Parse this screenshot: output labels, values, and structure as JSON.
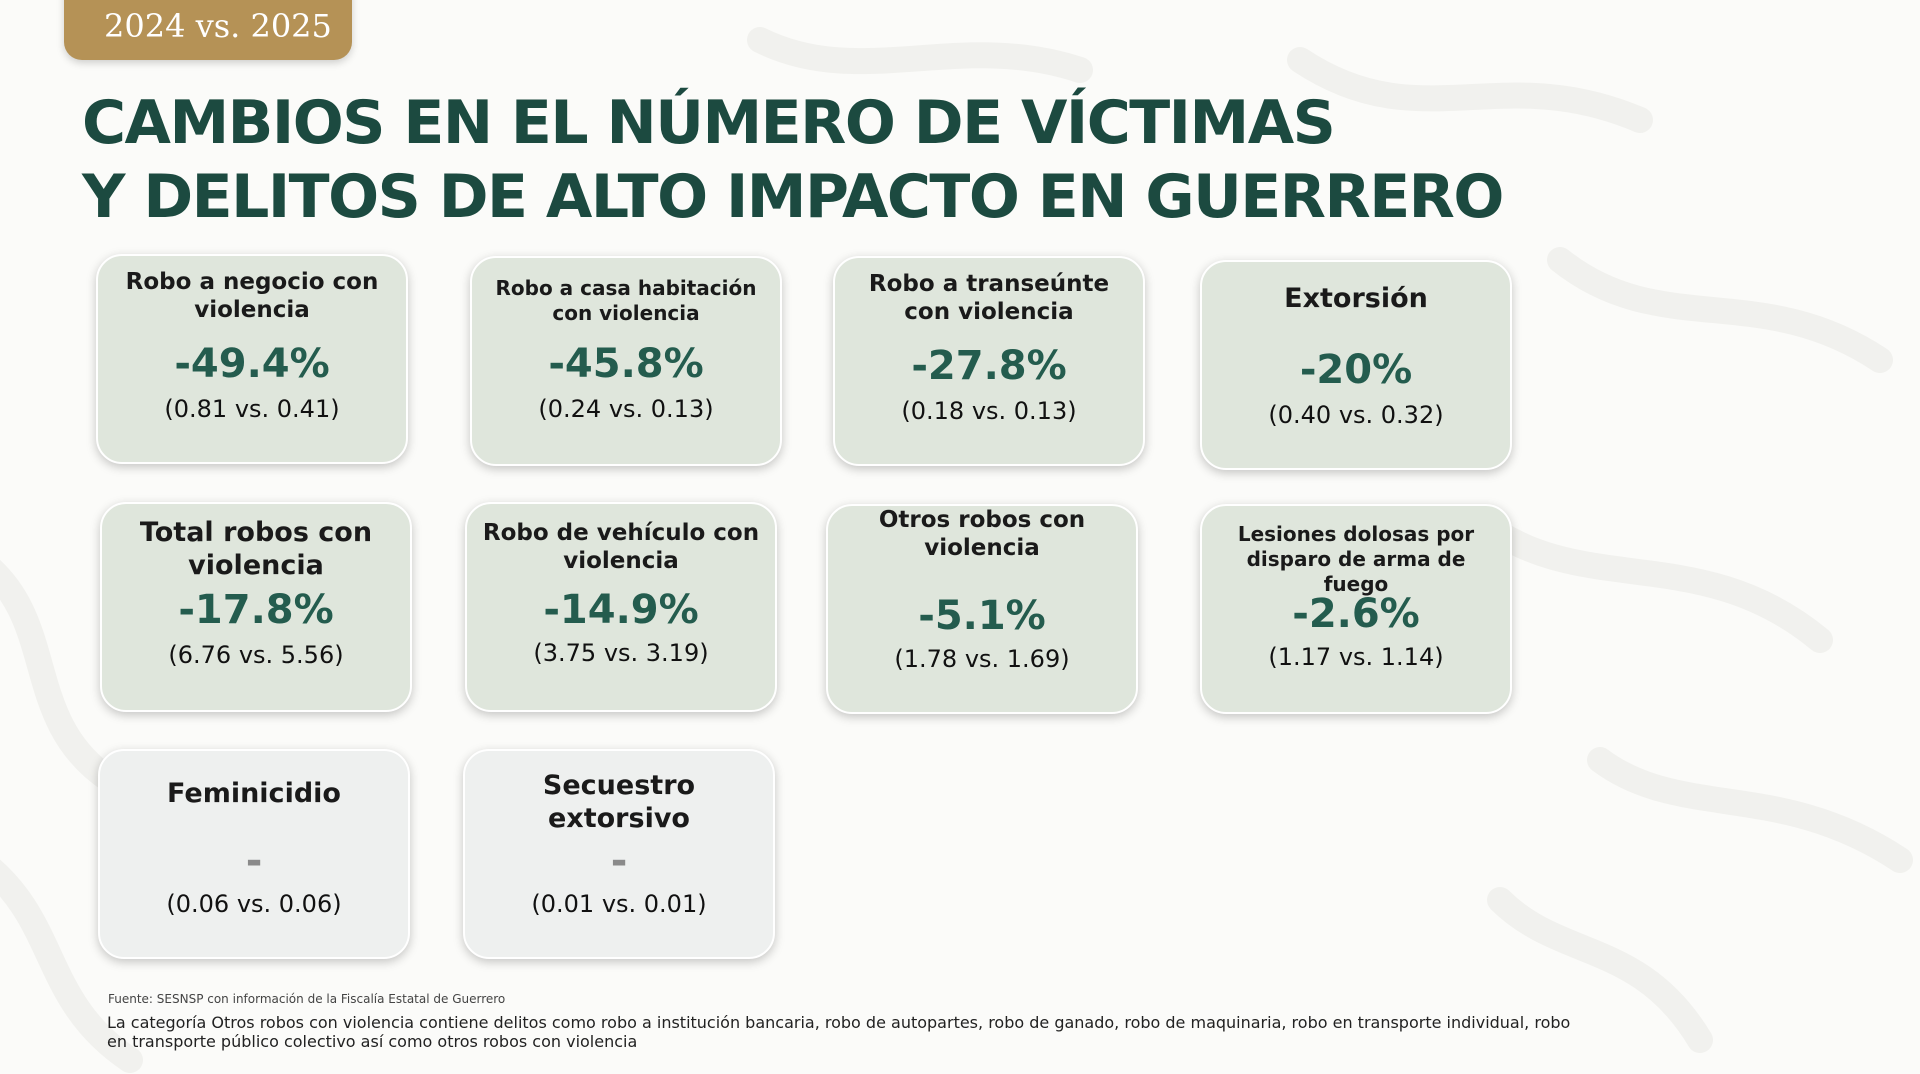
{
  "header": {
    "tab_label": "2024 vs. 2025",
    "title_line1": "CAMBIOS EN EL NÚMERO DE VÍCTIMAS",
    "title_line2": "Y DELITOS DE ALTO IMPACTO EN GUERRERO"
  },
  "cards": [
    {
      "label": "Robo a negocio con violencia",
      "change": "-49.4%",
      "comparison": "(0.81 vs. 0.41)"
    },
    {
      "label": "Robo a casa habitación con violencia",
      "change": "-45.8%",
      "comparison": "(0.24 vs. 0.13)"
    },
    {
      "label": "Robo a transeúnte con violencia",
      "change": "-27.8%",
      "comparison": "(0.18 vs. 0.13)"
    },
    {
      "label": "Extorsión",
      "change": "-20%",
      "comparison": "(0.40 vs. 0.32)"
    },
    {
      "label": "Total robos con violencia",
      "change": "-17.8%",
      "comparison": "(6.76 vs. 5.56)"
    },
    {
      "label": "Robo de vehículo con violencia",
      "change": "-14.9%",
      "comparison": "(3.75 vs. 3.19)"
    },
    {
      "label": "Otros robos con violencia",
      "change": "-5.1%",
      "comparison": "(1.78 vs. 1.69)"
    },
    {
      "label": "Lesiones dolosas por disparo de arma de fuego",
      "change": "-2.6%",
      "comparison": "(1.17 vs. 1.14)"
    },
    {
      "label": "Feminicidio",
      "change": "-",
      "comparison": "(0.06 vs. 0.06)"
    },
    {
      "label": "Secuestro extorsivo",
      "change": "-",
      "comparison": "(0.01 vs. 0.01)"
    }
  ],
  "footer": {
    "source": "Fuente: SESNSP con información de la Fiscalía Estatal de Guerrero",
    "note": "La categoría Otros robos con violencia contiene delitos como robo a institución bancaria, robo de autopartes, robo de ganado, robo de maquinaria, robo en transporte individual, robo en transporte público colectivo así como otros robos con violencia"
  },
  "colors": {
    "tab": "#b59256",
    "title": "#1c4a40",
    "card_green": "#dfe6dc",
    "card_grey": "#eef0ef",
    "percent": "#245c4e"
  }
}
